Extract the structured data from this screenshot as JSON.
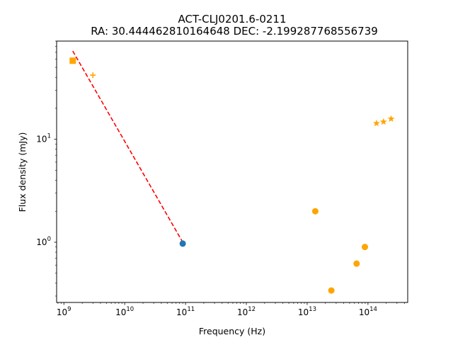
{
  "chart_data": {
    "type": "scatter",
    "title": "ACT-CLJ0201.6-0211",
    "subtitle": "RA: 30.444462810164648 DEC: -2.199287768556739",
    "xlabel": "Frequency (Hz)",
    "ylabel": "Flux density (mJy)",
    "xscale": "log",
    "yscale": "log",
    "xlim": [
      760000000.0,
      450000000000000.0
    ],
    "ylim": [
      0.26,
      90
    ],
    "x_ticks": [
      {
        "value": 1000000000.0,
        "base": "10",
        "exp": "9"
      },
      {
        "value": 10000000000.0,
        "base": "10",
        "exp": "10"
      },
      {
        "value": 100000000000.0,
        "base": "10",
        "exp": "11"
      },
      {
        "value": 1000000000000.0,
        "base": "10",
        "exp": "12"
      },
      {
        "value": 10000000000000.0,
        "base": "10",
        "exp": "13"
      },
      {
        "value": 100000000000000.0,
        "base": "10",
        "exp": "14"
      }
    ],
    "y_ticks": [
      {
        "value": 1,
        "base": "10",
        "exp": "0"
      },
      {
        "value": 10,
        "base": "10",
        "exp": "1"
      }
    ],
    "grid": false,
    "legend": "none",
    "series": [
      {
        "marker": "square",
        "color": "#ffa500",
        "points": [
          {
            "x": 1400000000.0,
            "y": 58
          }
        ]
      },
      {
        "marker": "plus",
        "color": "#ffa500",
        "points": [
          {
            "x": 3000000000.0,
            "y": 42
          }
        ]
      },
      {
        "marker": "circle",
        "color": "#1f77b4",
        "points": [
          {
            "x": 90000000000.0,
            "y": 0.97
          }
        ]
      },
      {
        "marker": "circle",
        "color": "#ffa500",
        "points": [
          {
            "x": 13600000000000.0,
            "y": 2.0
          },
          {
            "x": 25000000000000.0,
            "y": 0.34
          },
          {
            "x": 65000000000000.0,
            "y": 0.62
          },
          {
            "x": 89000000000000.0,
            "y": 0.9
          }
        ]
      },
      {
        "marker": "star",
        "color": "#ffa500",
        "points": [
          {
            "x": 138000000000000.0,
            "y": 14.3
          },
          {
            "x": 180000000000000.0,
            "y": 14.8
          },
          {
            "x": 240000000000000.0,
            "y": 15.8
          }
        ]
      }
    ],
    "fit_line": {
      "color": "#ff0000",
      "style": "dashed",
      "points": [
        {
          "x": 1400000000.0,
          "y": 72
        },
        {
          "x": 90000000000.0,
          "y": 1.0
        }
      ]
    }
  }
}
